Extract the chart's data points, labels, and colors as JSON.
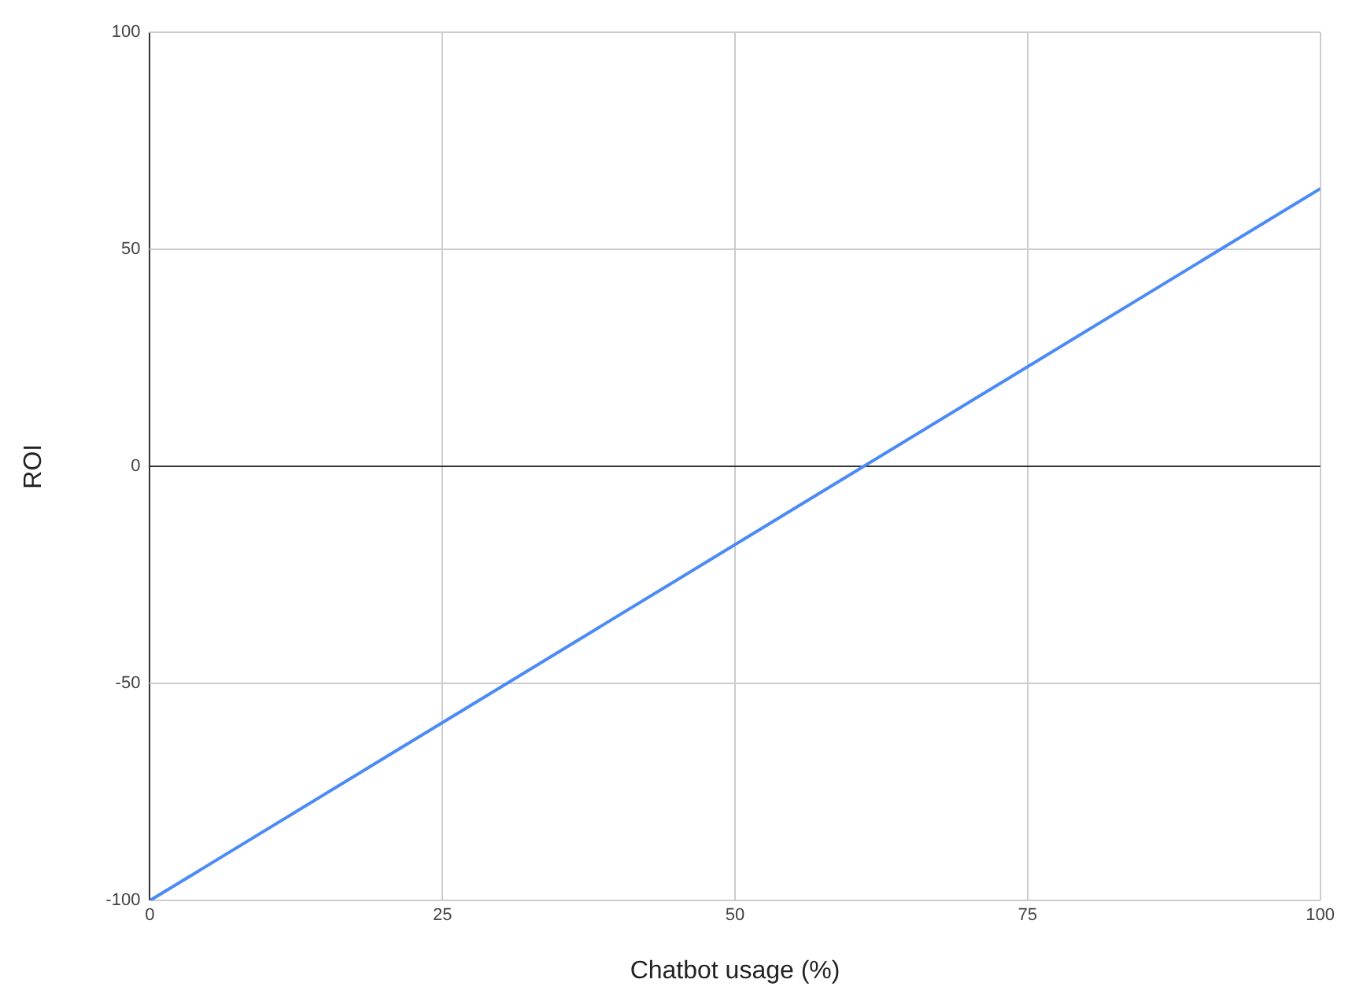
{
  "chart_data": {
    "type": "line",
    "xlabel": "Chatbot usage (%)",
    "ylabel": "ROI",
    "x": [
      0,
      100
    ],
    "series": [
      {
        "color": "#4c8bf5",
        "values": [
          -100,
          64
        ]
      }
    ],
    "xlim": [
      0,
      100
    ],
    "xticks": [
      0,
      25,
      50,
      75,
      100
    ],
    "ylim": [
      -100,
      100
    ],
    "yticks": [
      -100,
      -50,
      0,
      50,
      100
    ],
    "grid": true,
    "legend": false,
    "marker": "none",
    "line_style": "solid"
  }
}
